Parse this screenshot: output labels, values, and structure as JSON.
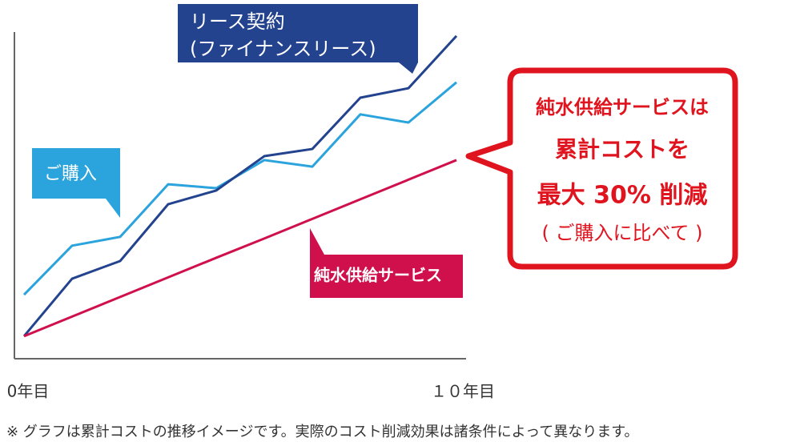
{
  "chart_data": {
    "type": "line",
    "categories": [
      "0年目",
      null,
      null,
      null,
      null,
      null,
      null,
      null,
      null,
      "１０年目"
    ],
    "ylim": [
      0,
      100
    ],
    "series": [
      {
        "name": "ご購入",
        "color": "#2ba3dc",
        "values": [
          19.6,
          34.6,
          37.3,
          53.4,
          52.2,
          60.8,
          58.8,
          74.8,
          72.3,
          84.6
        ]
      },
      {
        "name": "リース契約\n(ファイナンスリース)",
        "color": "#23438f",
        "values": [
          6.9,
          24.5,
          29.9,
          47.3,
          51.5,
          62.0,
          64.2,
          79.9,
          82.8,
          98.8
        ]
      },
      {
        "name": "純水供給サービス",
        "color": "#d0104c",
        "values": [
          6.9,
          12.9,
          18.9,
          24.9,
          30.9,
          36.8,
          42.8,
          48.8,
          54.8,
          60.8
        ]
      }
    ],
    "callout": [
      "純水供給サービスは",
      "累計コストを",
      "最大 30% 削減",
      "( ご購入に比べて )"
    ],
    "footnote": "※ グラフは累計コストの推移イメージです。実際のコスト削減効果は諸条件によって異なります。"
  }
}
